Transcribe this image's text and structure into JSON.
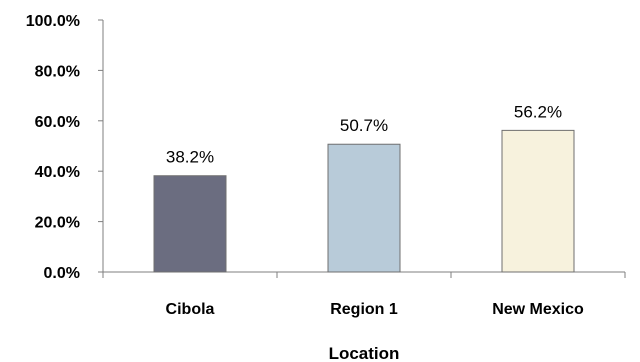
{
  "chart_data": {
    "type": "bar",
    "xlabel": "Location",
    "ylabel": "",
    "ylim": [
      0,
      100
    ],
    "y_ticks": [
      "0.0%",
      "20.0%",
      "40.0%",
      "60.0%",
      "80.0%",
      "100.0%"
    ],
    "categories": [
      "Cibola",
      "Region 1",
      "New Mexico"
    ],
    "values": [
      38.2,
      50.7,
      56.2
    ],
    "data_labels": [
      "38.2%",
      "50.7%",
      "56.2%"
    ],
    "colors": [
      "#6b6d80",
      "#b8cbd9",
      "#f7f2dd"
    ],
    "grid": false,
    "legend": "none"
  }
}
